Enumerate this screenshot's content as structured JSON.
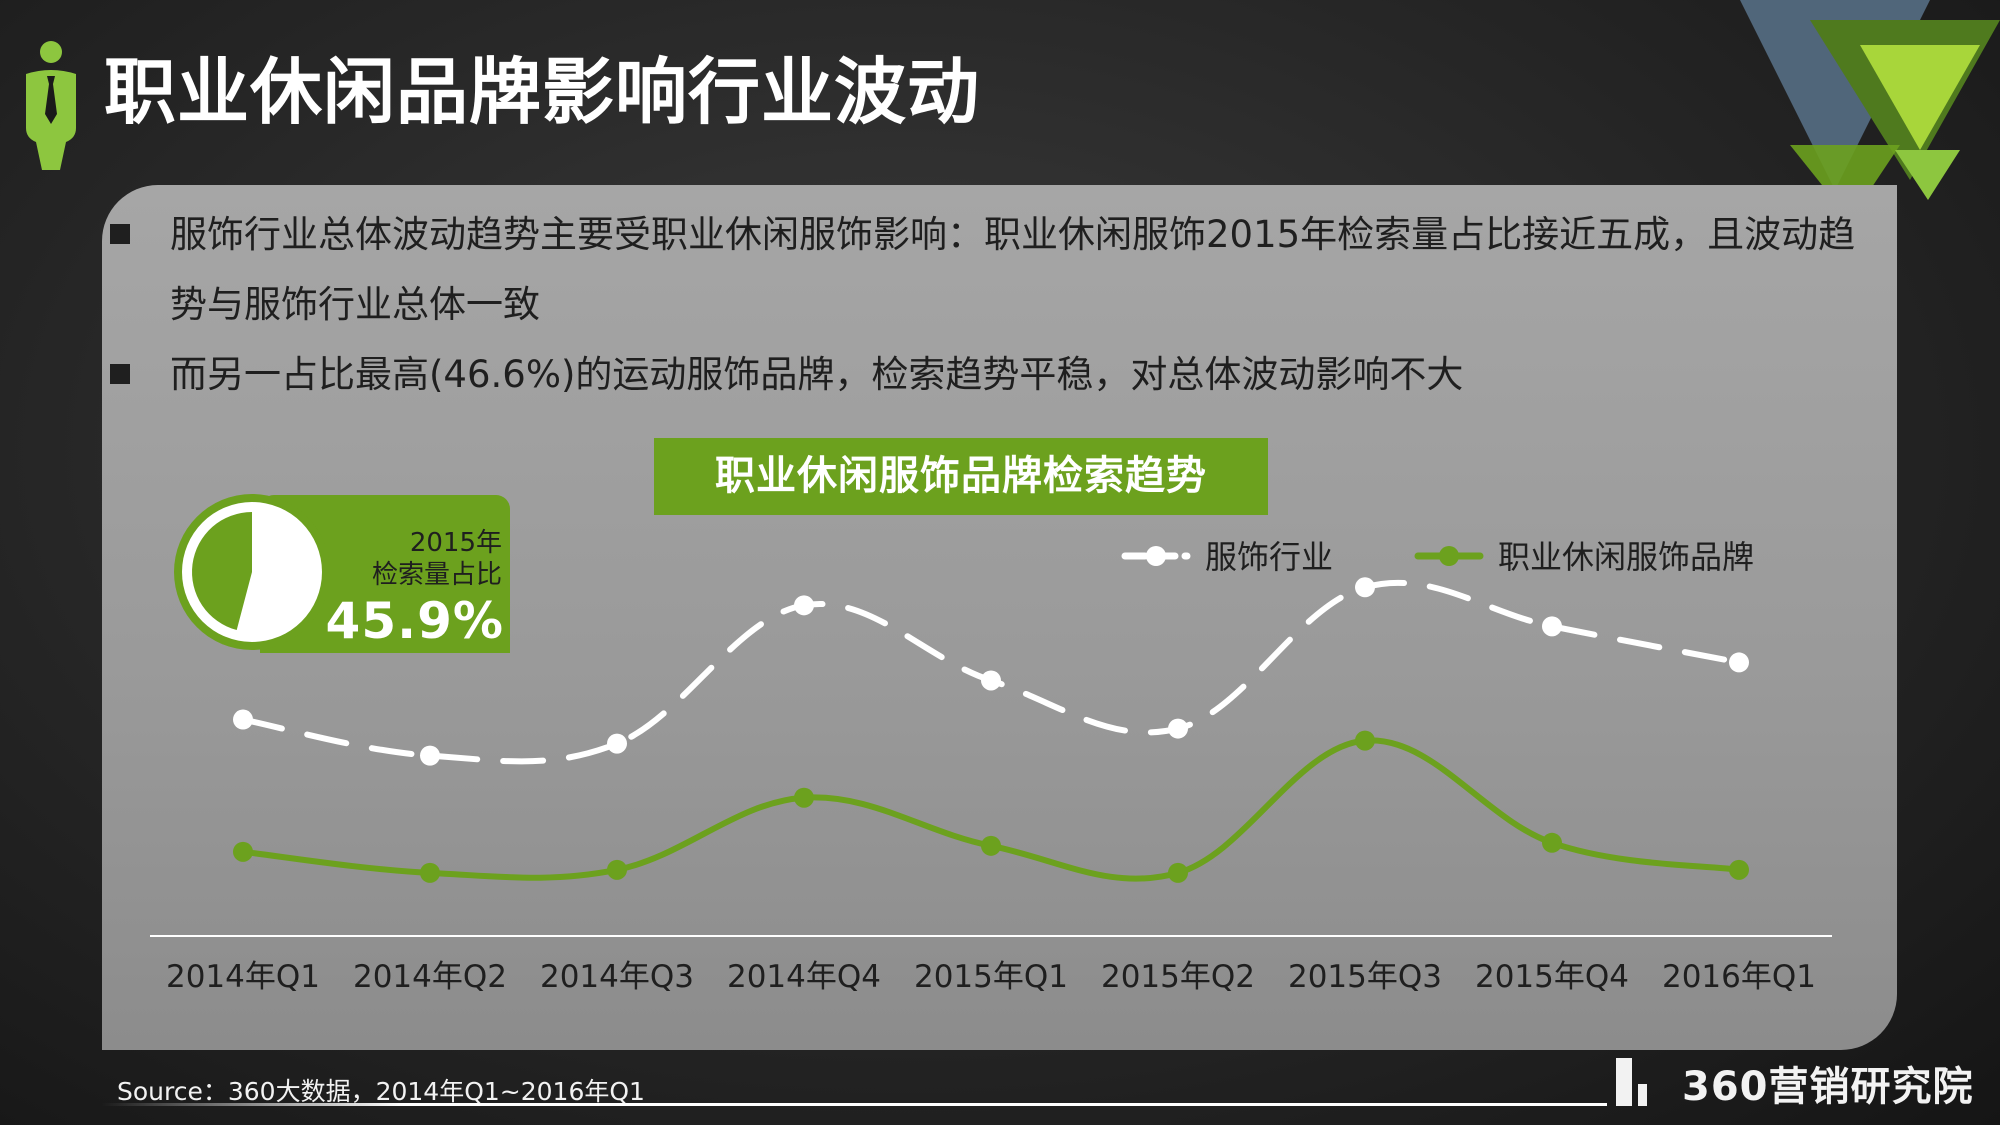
{
  "header": {
    "title": "职业休闲品牌影响行业波动"
  },
  "bullets": [
    {
      "text": "服饰行业总体波动趋势主要受职业休闲服饰影响：职业休闲服饰2015年检索量占比接近五成，且波动趋势与服饰行业总体一致"
    },
    {
      "text": "而另一占比最高(46.6%)的运动服饰品牌，检索趋势平稳，对总体波动影响不大"
    }
  ],
  "share_badge": {
    "label_line1": "2015年",
    "label_line2": "检索量占比",
    "value_text": "45.9%",
    "value": 0.459
  },
  "chart_data": {
    "type": "line",
    "title": "职业休闲服饰品牌检索趋势",
    "categories": [
      "2014年Q1",
      "2014年Q2",
      "2014年Q3",
      "2014年Q4",
      "2015年Q1",
      "2015年Q2",
      "2015年Q3",
      "2015年Q4",
      "2016年Q1"
    ],
    "series": [
      {
        "name": "服饰行业",
        "style": "dashed",
        "color": "#ffffff",
        "values": [
          72,
          60,
          64,
          110,
          85,
          69,
          116,
          103,
          91
        ]
      },
      {
        "name": "职业休闲服饰品牌",
        "style": "solid",
        "color": "#6ca11e",
        "values": [
          28,
          21,
          22,
          46,
          30,
          21,
          65,
          31,
          22
        ]
      }
    ],
    "ylim": [
      0,
      160
    ],
    "y_axis_visible": false,
    "grid": false,
    "legend_position": "top-right"
  },
  "footer": {
    "source": "Source：360大数据，2014年Q1~2016年Q1",
    "brand": "360营销研究院"
  },
  "colors": {
    "accent_green": "#6ca11e",
    "light_green": "#8dc63f",
    "panel_gray": "#9e9e9e",
    "text_dark": "#1f1f1f"
  }
}
